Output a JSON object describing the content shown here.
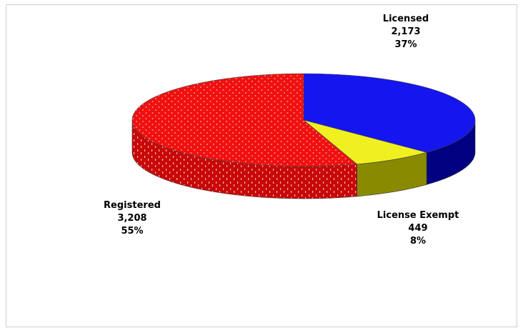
{
  "chart_data": {
    "type": "pie",
    "style": "3d",
    "slices": [
      {
        "label": "Licensed",
        "value": 2173,
        "value_text": "2,173",
        "percent_text": "37%",
        "color": "#1515f0",
        "side_color": "#000080"
      },
      {
        "label": "License Exempt",
        "value": 449,
        "value_text": "449",
        "percent_text": "8%",
        "color": "#f0f020",
        "side_color": "#8a8a00"
      },
      {
        "label": "Registered",
        "value": 3208,
        "value_text": "3,208",
        "percent_text": "55%",
        "color": "#f01010",
        "side_color": "#c00000",
        "pattern": "dotted"
      }
    ]
  }
}
